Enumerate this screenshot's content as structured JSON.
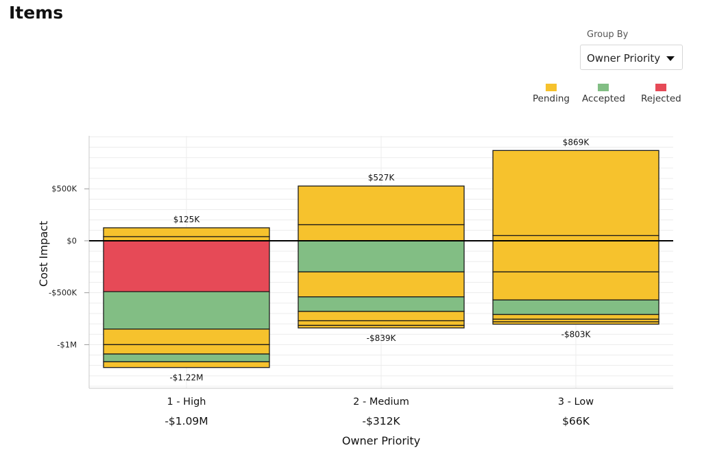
{
  "page": {
    "title": "Items"
  },
  "group_by": {
    "label": "Group By",
    "value": "Owner Priority"
  },
  "legend": [
    {
      "label": "Pending",
      "color": "#F6C22D"
    },
    {
      "label": "Accepted",
      "color": "#82BE84"
    },
    {
      "label": "Rejected",
      "color": "#E64A57"
    }
  ],
  "chart_data": {
    "type": "bar",
    "stacked": true,
    "xlabel": "Owner Priority",
    "ylabel": "Cost Impact",
    "ylim": [
      -1420000,
      1010000
    ],
    "yticks": [
      {
        "value": 500000,
        "label": "$500K"
      },
      {
        "value": 0,
        "label": "$0"
      },
      {
        "value": -500000,
        "label": "-$500K"
      },
      {
        "value": -1000000,
        "label": "-$1M"
      }
    ],
    "grid": true,
    "zero_line": true,
    "categories": [
      {
        "label": "1 - High",
        "net": "-$1.09M",
        "top_label": "$125K",
        "bottom_label": "-$1.22M",
        "positive": [
          {
            "status": "Pending",
            "value": 40000
          },
          {
            "status": "Pending",
            "value": 85000
          }
        ],
        "negative": [
          {
            "status": "Rejected",
            "value": -490000
          },
          {
            "status": "Accepted",
            "value": -360000
          },
          {
            "status": "Pending",
            "value": -150000
          },
          {
            "status": "Pending",
            "value": -90000
          },
          {
            "status": "Accepted",
            "value": -75000
          },
          {
            "status": "Pending",
            "value": -55000
          }
        ]
      },
      {
        "label": "2 - Medium",
        "net": "-$312K",
        "top_label": "$527K",
        "bottom_label": "-$839K",
        "positive": [
          {
            "status": "Pending",
            "value": 155000
          },
          {
            "status": "Pending",
            "value": 372000
          }
        ],
        "negative": [
          {
            "status": "Accepted",
            "value": -300000
          },
          {
            "status": "Pending",
            "value": -240000
          },
          {
            "status": "Accepted",
            "value": -140000
          },
          {
            "status": "Pending",
            "value": -90000
          },
          {
            "status": "Pending",
            "value": -45000
          },
          {
            "status": "Pending",
            "value": -24000
          }
        ]
      },
      {
        "label": "3 - Low",
        "net": "$66K",
        "top_label": "$869K",
        "bottom_label": "-$803K",
        "positive": [
          {
            "status": "Pending",
            "value": 50000
          },
          {
            "status": "Pending",
            "value": 819000
          }
        ],
        "negative": [
          {
            "status": "Pending",
            "value": -300000
          },
          {
            "status": "Pending",
            "value": -270000
          },
          {
            "status": "Accepted",
            "value": -140000
          },
          {
            "status": "Pending",
            "value": -45000
          },
          {
            "status": "Pending",
            "value": -25000
          },
          {
            "status": "Pending",
            "value": -23000
          }
        ]
      }
    ]
  }
}
